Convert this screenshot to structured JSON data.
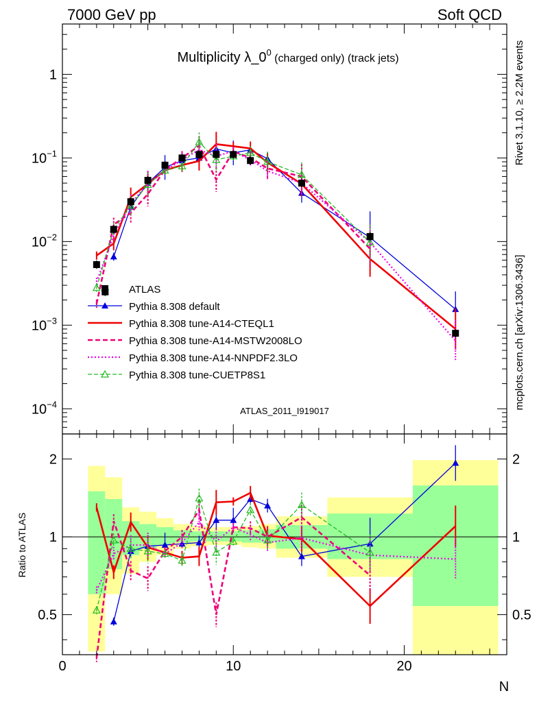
{
  "header": {
    "left": "7000 GeV pp",
    "right": "Soft QCD"
  },
  "plot_title": {
    "main": "Multiplicity λ_0",
    "sup": "0",
    "tail": " (charged only) (track jets)"
  },
  "side_labels": {
    "rivet": "Rivet 3.1.10, ≥ 2.2M events",
    "mcplots": "mcplots.cern.ch [arXiv:1306.3436]"
  },
  "watermark": "ATLAS_2011_I919017",
  "colors": {
    "data": "#000000",
    "default": "#0000dd",
    "cteql1": "#ee0000",
    "mstw": "#ee0077",
    "nnpdf": "#ee00ee",
    "cuetp8s1": "#22bb22",
    "band_inner": "#99ff99",
    "band_outer": "#ffff99"
  },
  "chart_data": [
    {
      "type": "scatter",
      "panel": "main",
      "title": "Multiplicity λ_0^0 (charged only) (track jets)",
      "xlabel": "N",
      "ylabel": "",
      "xlim": [
        0,
        26
      ],
      "ylim": [
        5e-05,
        4
      ],
      "y_scale": "log",
      "y_ticks": [
        {
          "v": 0.0001,
          "base": "10",
          "exp": "−4"
        },
        {
          "v": 0.001,
          "base": "10",
          "exp": "−3"
        },
        {
          "v": 0.01,
          "base": "10",
          "exp": "−2"
        },
        {
          "v": 0.1,
          "base": "10",
          "exp": "−1"
        },
        {
          "v": 1,
          "base": "1",
          "exp": ""
        }
      ],
      "legend_position": "center-left",
      "series": [
        {
          "name": "ATLAS",
          "key": "data",
          "style": "data",
          "x": [
            2,
            2.5,
            3,
            4,
            5,
            6,
            7,
            8,
            9,
            10,
            11,
            14,
            18,
            23
          ],
          "y": [
            0.0053,
            0.0025,
            0.014,
            0.03,
            0.054,
            0.082,
            0.1,
            0.11,
            0.11,
            0.11,
            0.093,
            0.05,
            0.0115,
            0.0008
          ]
        },
        {
          "name": "Pythia 8.308 default",
          "key": "default",
          "style": "solid-thin",
          "marker": "triangle-filled",
          "x": [
            3,
            4,
            5,
            6,
            7,
            8,
            9,
            10,
            11,
            12,
            14,
            18,
            23
          ],
          "y": [
            0.0066,
            0.026,
            0.05,
            0.077,
            0.093,
            0.1,
            0.128,
            0.115,
            0.125,
            0.098,
            0.038,
            0.0112,
            0.00155
          ]
        },
        {
          "name": "Pythia 8.308 tune-A14-CTEQL1",
          "key": "cteql1",
          "style": "solid-thick",
          "marker": "none",
          "x": [
            2,
            3,
            4,
            5,
            6,
            7,
            8,
            9,
            10,
            11,
            12,
            14,
            18,
            23
          ],
          "y": [
            0.0068,
            0.0095,
            0.034,
            0.049,
            0.071,
            0.082,
            0.092,
            0.146,
            0.138,
            0.13,
            0.088,
            0.049,
            0.0062,
            0.0009
          ]
        },
        {
          "name": "Pythia 8.308 tune-A14-MSTW2008LO",
          "key": "mstw",
          "style": "dashed-thick",
          "marker": "none",
          "x": [
            2,
            3,
            4,
            5,
            6,
            7,
            8,
            9,
            10,
            11,
            12,
            14,
            18
          ],
          "y": [
            0.0018,
            0.016,
            0.022,
            0.037,
            0.072,
            0.1,
            0.14,
            0.055,
            0.12,
            0.1,
            0.075,
            0.06,
            0.0082
          ]
        },
        {
          "name": "Pythia 8.308 tune-A14-NNPDF2.3LO",
          "key": "nnpdf",
          "style": "dotted",
          "marker": "none",
          "x": [
            2,
            3,
            4,
            5,
            6,
            7,
            8,
            9,
            10,
            11,
            12,
            14,
            18,
            23
          ],
          "y": [
            0.0033,
            0.012,
            0.028,
            0.05,
            0.07,
            0.095,
            0.125,
            0.105,
            0.12,
            0.095,
            0.07,
            0.05,
            0.0098,
            0.00065
          ]
        },
        {
          "name": "Pythia 8.308 tune-CUETP8S1",
          "key": "cuetp8s1",
          "style": "dashed-thin",
          "marker": "triangle-open",
          "x": [
            2,
            3,
            4,
            5,
            6,
            7,
            8,
            9,
            10,
            11,
            12,
            14,
            18
          ],
          "y": [
            0.0028,
            0.014,
            0.027,
            0.048,
            0.071,
            0.08,
            0.155,
            0.095,
            0.105,
            0.115,
            0.09,
            0.063,
            0.0098
          ]
        }
      ]
    },
    {
      "type": "scatter",
      "panel": "ratio",
      "xlabel": "N",
      "ylabel": "Ratio to ATLAS",
      "xlim": [
        0,
        26
      ],
      "ylim": [
        0.35,
        2.5
      ],
      "y_ticks": [
        0.5,
        1,
        2
      ],
      "x_ticks": [
        0,
        10,
        20
      ],
      "bands": [
        {
          "x0": 1.5,
          "x1": 2.5,
          "inner": [
            0.6,
            1.5
          ],
          "outer": [
            0.36,
            1.88
          ]
        },
        {
          "x0": 2.5,
          "x1": 3.5,
          "inner": [
            0.75,
            1.4
          ],
          "outer": [
            0.6,
            1.7
          ]
        },
        {
          "x0": 3.5,
          "x1": 4.5,
          "inner": [
            0.85,
            1.15
          ],
          "outer": [
            0.72,
            1.3
          ]
        },
        {
          "x0": 4.5,
          "x1": 5.5,
          "inner": [
            0.9,
            1.12
          ],
          "outer": [
            0.8,
            1.25
          ]
        },
        {
          "x0": 5.5,
          "x1": 6.5,
          "inner": [
            0.93,
            1.09
          ],
          "outer": [
            0.85,
            1.18
          ]
        },
        {
          "x0": 6.5,
          "x1": 7.5,
          "inner": [
            0.95,
            1.06
          ],
          "outer": [
            0.9,
            1.12
          ]
        },
        {
          "x0": 7.5,
          "x1": 8.5,
          "inner": [
            0.96,
            1.05
          ],
          "outer": [
            0.92,
            1.1
          ]
        },
        {
          "x0": 8.5,
          "x1": 9.5,
          "inner": [
            0.96,
            1.05
          ],
          "outer": [
            0.93,
            1.09
          ]
        },
        {
          "x0": 9.5,
          "x1": 10.5,
          "inner": [
            0.96,
            1.05
          ],
          "outer": [
            0.93,
            1.09
          ]
        },
        {
          "x0": 10.5,
          "x1": 11.5,
          "inner": [
            0.95,
            1.06
          ],
          "outer": [
            0.91,
            1.1
          ]
        },
        {
          "x0": 11.5,
          "x1": 12.5,
          "inner": [
            0.95,
            1.07
          ],
          "outer": [
            0.9,
            1.12
          ]
        },
        {
          "x0": 12.5,
          "x1": 15.5,
          "inner": [
            0.9,
            1.11
          ],
          "outer": [
            0.83,
            1.2
          ]
        },
        {
          "x0": 15.5,
          "x1": 20.5,
          "inner": [
            0.82,
            1.23
          ],
          "outer": [
            0.7,
            1.42
          ]
        },
        {
          "x0": 20.5,
          "x1": 25.5,
          "inner": [
            0.54,
            1.58
          ],
          "outer": [
            0.35,
            1.98
          ]
        }
      ],
      "series": [
        {
          "key": "default",
          "x": [
            3,
            4,
            5,
            6,
            7,
            8,
            9,
            10,
            11,
            12,
            14,
            18,
            23
          ],
          "y": [
            0.47,
            0.88,
            0.92,
            0.93,
            0.94,
            0.95,
            1.16,
            1.16,
            1.4,
            1.32,
            0.84,
            0.94,
            1.93
          ]
        },
        {
          "key": "cteql1",
          "x": [
            2,
            3,
            4,
            5,
            6,
            7,
            8,
            9,
            10,
            11,
            12,
            14,
            18,
            23
          ],
          "y": [
            1.3,
            0.73,
            1.14,
            0.91,
            0.87,
            0.83,
            0.84,
            1.36,
            1.37,
            1.48,
            1.01,
            0.98,
            0.54,
            1.1
          ]
        },
        {
          "key": "mstw",
          "x": [
            2,
            3,
            4,
            5,
            6,
            7,
            8,
            9,
            10,
            11,
            12,
            14,
            18
          ],
          "y": [
            0.34,
            1.15,
            0.74,
            0.69,
            0.88,
            1.0,
            1.27,
            0.5,
            1.09,
            1.08,
            1.0,
            1.19,
            0.71
          ]
        },
        {
          "key": "nnpdf",
          "x": [
            2,
            3,
            4,
            5,
            6,
            7,
            8,
            9,
            10,
            11,
            12,
            14,
            18,
            23
          ],
          "y": [
            0.62,
            0.86,
            0.93,
            0.93,
            0.86,
            0.95,
            1.14,
            0.96,
            1.09,
            1.02,
            0.95,
            0.99,
            0.85,
            0.82
          ]
        },
        {
          "key": "cuetp8s1",
          "x": [
            2,
            3,
            4,
            5,
            6,
            7,
            8,
            9,
            10,
            11,
            12,
            14,
            18
          ],
          "y": [
            0.52,
            0.97,
            0.9,
            0.88,
            0.86,
            0.81,
            1.41,
            0.87,
            0.96,
            1.27,
            0.97,
            1.33,
            0.87
          ]
        }
      ]
    }
  ]
}
